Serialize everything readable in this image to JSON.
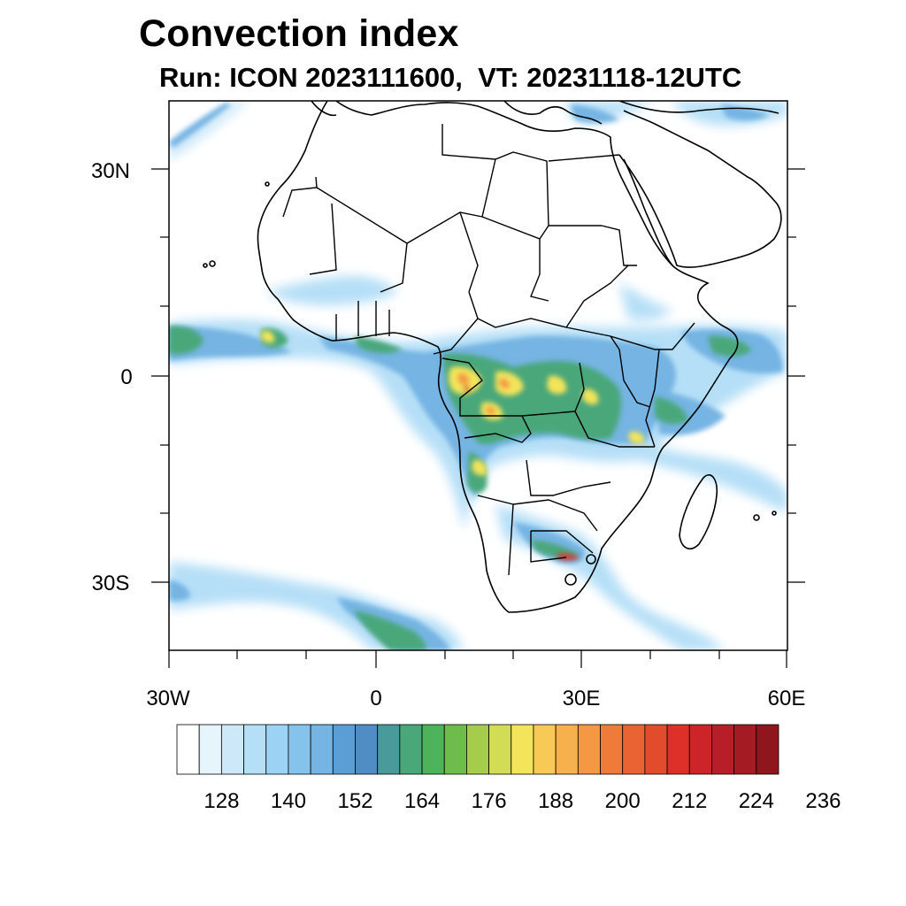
{
  "title": "Convection index",
  "subtitle": "Run: ICON 2023111600,  VT: 20231118-12UTC",
  "lat_labels": [
    "30N",
    "0",
    "30S"
  ],
  "lon_labels": [
    "30W",
    "0",
    "30E",
    "60E"
  ],
  "colorbar": {
    "colors": [
      "#ffffff",
      "#e6f4fc",
      "#cde9f9",
      "#b5dff7",
      "#9cd3f4",
      "#85c3ec",
      "#75b4e3",
      "#5b9ed6",
      "#4f8dc4",
      "#4a9a9b",
      "#4aa77a",
      "#4db35a",
      "#6ebd4c",
      "#a5cd4b",
      "#d2dd55",
      "#f3e45a",
      "#f8c954",
      "#f6b14d",
      "#f49844",
      "#ef7b3a",
      "#ea6433",
      "#e34b2d",
      "#dc3029",
      "#cd2429",
      "#b81e28",
      "#a51b24",
      "#8f161d"
    ],
    "labels": [
      "128",
      "140",
      "152",
      "164",
      "176",
      "188",
      "200",
      "212",
      "224",
      "236"
    ]
  },
  "blob_colors": {
    "light": "#b5dff7",
    "mid": "#75b4e3",
    "teal": "#4aa77a",
    "green": "#6ebd4c",
    "yellow": "#f3e45a",
    "orange": "#f49844",
    "red": "#dc3029"
  },
  "coast_color": "#000000"
}
